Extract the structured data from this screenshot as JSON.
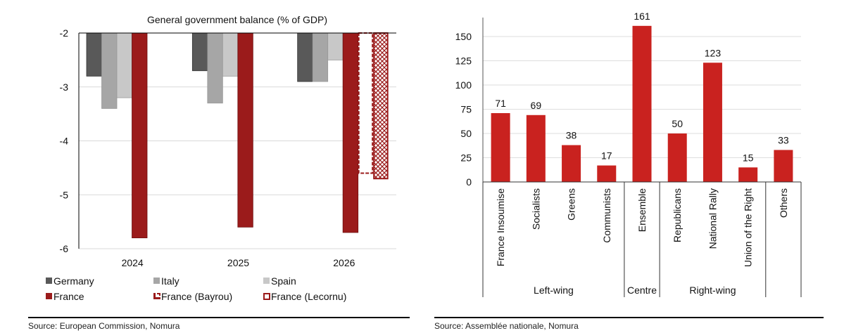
{
  "chart_data": [
    {
      "type": "bar",
      "title": "General government balance (% of GDP)",
      "xlabel": "",
      "ylabel": "",
      "ylim": [
        -6,
        -2
      ],
      "yticks": [
        -2,
        -3,
        -4,
        -5,
        -6
      ],
      "grid": true,
      "categories": [
        "2024",
        "2025",
        "2026"
      ],
      "series": [
        {
          "name": "Germany",
          "color": "#595959",
          "style": "solid",
          "values": [
            -2.8,
            -2.7,
            -2.9
          ]
        },
        {
          "name": "Italy",
          "color": "#a6a6a6",
          "style": "solid",
          "values": [
            -3.4,
            -3.3,
            -2.9
          ]
        },
        {
          "name": "Spain",
          "color": "#c8c8c8",
          "style": "solid",
          "values": [
            -3.2,
            -2.8,
            -2.5
          ]
        },
        {
          "name": "France",
          "color": "#9b1b1b",
          "style": "solid",
          "values": [
            -5.8,
            -5.6,
            -5.7
          ]
        },
        {
          "name": "France (Bayrou)",
          "color": "#9b1b1b",
          "style": "dashed-outline",
          "values": [
            null,
            null,
            -4.6
          ]
        },
        {
          "name": "France (Lecornu)",
          "color": "#9b1b1b",
          "style": "crosshatch",
          "values": [
            null,
            null,
            -4.7
          ]
        }
      ],
      "legend_position": "bottom",
      "source": "Source: European Commission, Nomura"
    },
    {
      "type": "bar",
      "title": "",
      "xlabel": "",
      "ylabel": "",
      "ylim": [
        0,
        165
      ],
      "yticks": [
        0,
        25,
        50,
        75,
        100,
        125,
        150
      ],
      "grid": true,
      "color": "#c9221f",
      "categories": [
        "France Insoumise",
        "Socialists",
        "Greens",
        "Communists",
        "Ensemble",
        "Republicans",
        "National Rally",
        "Union of the Right",
        "Others"
      ],
      "values": [
        71,
        69,
        38,
        17,
        161,
        50,
        123,
        15,
        33
      ],
      "groups": [
        {
          "label": "Left-wing",
          "count": 4
        },
        {
          "label": "Centre",
          "count": 1
        },
        {
          "label": "Right-wing",
          "count": 3
        },
        {
          "label": "",
          "count": 1
        }
      ],
      "source": "Source: Assemblée nationale, Nomura"
    }
  ]
}
